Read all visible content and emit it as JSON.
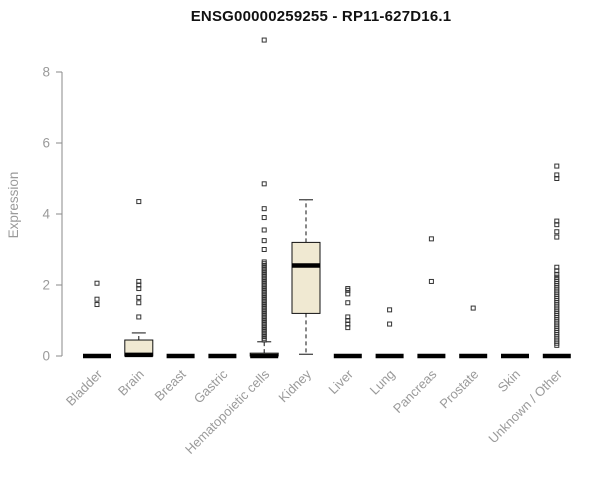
{
  "chart_data": {
    "type": "boxplot",
    "title": "ENSG00000259255 - RP11-627D16.1",
    "ylabel": "Expression",
    "xlabel": "",
    "ylim": [
      0,
      9
    ],
    "yticks": [
      0,
      2,
      4,
      6,
      8
    ],
    "grid": false,
    "legend": "none",
    "box_fill": "#f0e9d2",
    "box_stroke": "#111111",
    "axis_color": "#8a8a8a",
    "label_color": "#9a9a9a",
    "categories": [
      "Bladder",
      "Brain",
      "Breast",
      "Gastric",
      "Hematopoietic cells",
      "Kidney",
      "Liver",
      "Lung",
      "Pancreas",
      "Prostate",
      "Skin",
      "Unknown / Other"
    ],
    "series": [
      {
        "category": "Bladder",
        "q1": 0,
        "median": 0,
        "q3": 0,
        "whisker_low": 0,
        "whisker_high": 0,
        "outliers": [
          1.45,
          1.6,
          2.05
        ]
      },
      {
        "category": "Brain",
        "q1": 0,
        "median": 0.03,
        "q3": 0.45,
        "whisker_low": 0,
        "whisker_high": 0.65,
        "outliers": [
          1.1,
          1.5,
          1.65,
          1.9,
          2.0,
          2.1,
          4.35
        ]
      },
      {
        "category": "Breast",
        "q1": 0,
        "median": 0,
        "q3": 0,
        "whisker_low": 0,
        "whisker_high": 0,
        "outliers": []
      },
      {
        "category": "Gastric",
        "q1": 0,
        "median": 0,
        "q3": 0,
        "whisker_low": 0,
        "whisker_high": 0,
        "outliers": []
      },
      {
        "category": "Hematopoietic cells",
        "q1": 0,
        "median": 0,
        "q3": 0.08,
        "whisker_low": 0,
        "whisker_high": 0.4,
        "outliers": [
          0.45,
          0.5,
          0.55,
          0.6,
          0.65,
          0.7,
          0.75,
          0.8,
          0.85,
          0.9,
          0.95,
          1.0,
          1.05,
          1.1,
          1.15,
          1.2,
          1.25,
          1.3,
          1.35,
          1.4,
          1.45,
          1.5,
          1.55,
          1.6,
          1.65,
          1.7,
          1.75,
          1.8,
          1.85,
          1.9,
          1.95,
          2.0,
          2.05,
          2.1,
          2.15,
          2.2,
          2.25,
          2.3,
          2.35,
          2.4,
          2.45,
          2.5,
          2.55,
          2.6,
          2.65,
          3.0,
          3.25,
          3.55,
          3.9,
          4.15,
          4.85,
          8.9
        ]
      },
      {
        "category": "Kidney",
        "q1": 1.2,
        "median": 2.55,
        "q3": 3.2,
        "whisker_low": 0.05,
        "whisker_high": 4.4,
        "outliers": []
      },
      {
        "category": "Liver",
        "q1": 0,
        "median": 0,
        "q3": 0,
        "whisker_low": 0,
        "whisker_high": 0,
        "outliers": [
          0.8,
          0.9,
          1.0,
          1.1,
          1.5,
          1.75,
          1.85,
          1.9
        ]
      },
      {
        "category": "Lung",
        "q1": 0,
        "median": 0,
        "q3": 0,
        "whisker_low": 0,
        "whisker_high": 0,
        "outliers": [
          0.9,
          1.3
        ]
      },
      {
        "category": "Pancreas",
        "q1": 0,
        "median": 0,
        "q3": 0,
        "whisker_low": 0,
        "whisker_high": 0,
        "outliers": [
          2.1,
          3.3
        ]
      },
      {
        "category": "Prostate",
        "q1": 0,
        "median": 0,
        "q3": 0,
        "whisker_low": 0,
        "whisker_high": 0,
        "outliers": [
          1.35
        ]
      },
      {
        "category": "Skin",
        "q1": 0,
        "median": 0,
        "q3": 0,
        "whisker_low": 0,
        "whisker_high": 0,
        "outliers": []
      },
      {
        "category": "Unknown / Other",
        "q1": 0,
        "median": 0,
        "q3": 0,
        "whisker_low": 0,
        "whisker_high": 0,
        "outliers": [
          0.3,
          0.36,
          0.42,
          0.48,
          0.54,
          0.6,
          0.66,
          0.72,
          0.78,
          0.84,
          0.9,
          0.96,
          1.02,
          1.08,
          1.14,
          1.2,
          1.26,
          1.32,
          1.38,
          1.44,
          1.5,
          1.56,
          1.62,
          1.68,
          1.74,
          1.8,
          1.86,
          1.92,
          1.98,
          2.04,
          2.1,
          2.16,
          2.22,
          2.3,
          2.4,
          2.5,
          3.35,
          3.5,
          3.7,
          3.8,
          5.0,
          5.1,
          5.35
        ]
      }
    ]
  }
}
